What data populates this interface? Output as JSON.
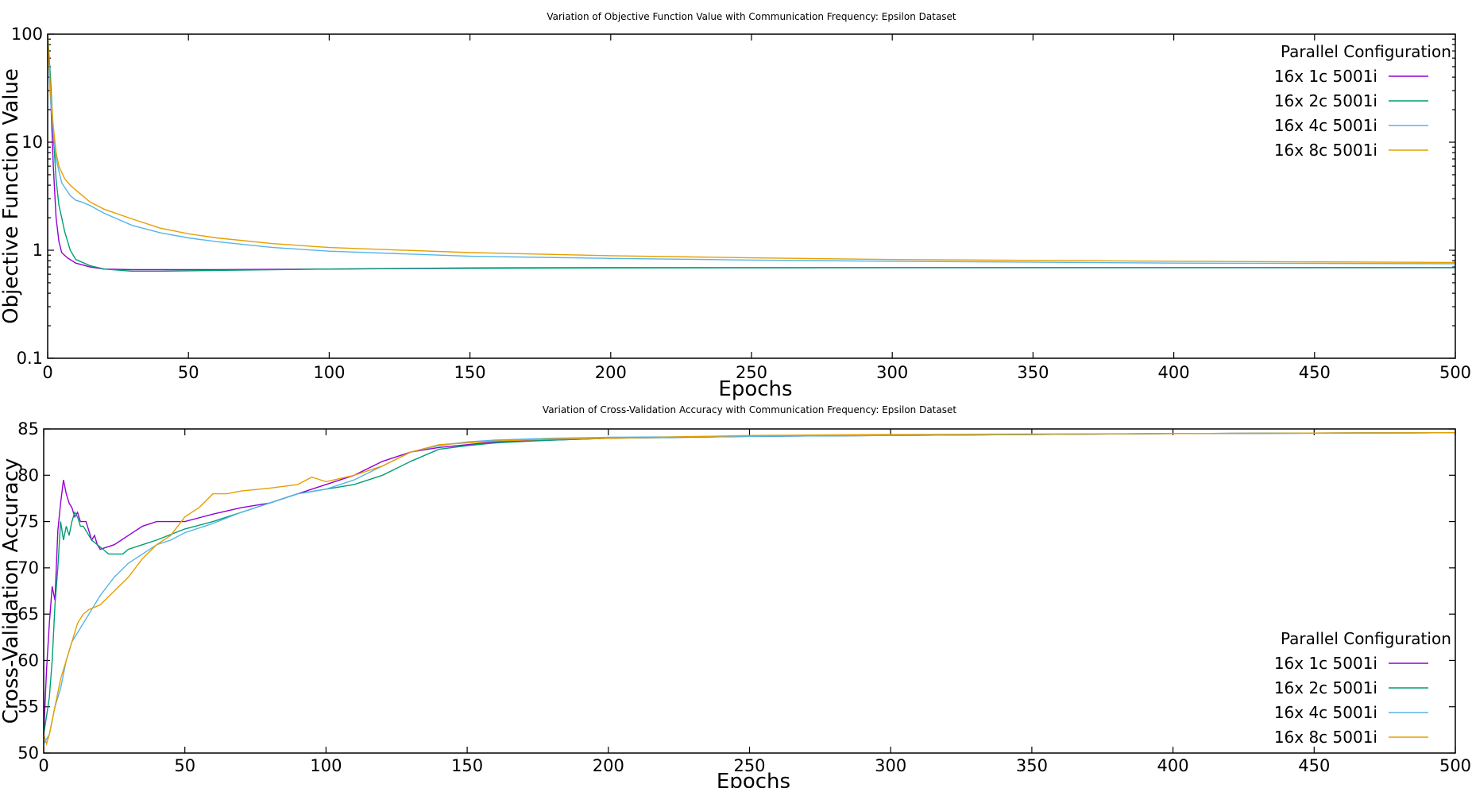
{
  "chart_data": [
    {
      "type": "line",
      "title": "Variation of Objective Function Value with Communication Frequency: Epsilon Dataset",
      "xlabel": "Epochs",
      "ylabel": "Objective Function Value",
      "xlim": [
        0,
        500
      ],
      "ylim": [
        0.1,
        100
      ],
      "yscale": "log",
      "xticks": [
        "0",
        "50",
        "100",
        "150",
        "200",
        "250",
        "300",
        "350",
        "400",
        "450",
        "500"
      ],
      "yticks": [
        "0.1",
        "1",
        "10",
        "100"
      ],
      "legend_title": "Parallel Configuration",
      "legend_position": "top-right",
      "grid": false,
      "series": [
        {
          "name": "16x 1c 5001i",
          "color": "#9400d3",
          "points": [
            [
              0,
              100
            ],
            [
              1,
              30
            ],
            [
              2,
              6
            ],
            [
              3,
              2
            ],
            [
              4,
              1.2
            ],
            [
              5,
              0.95
            ],
            [
              7,
              0.85
            ],
            [
              10,
              0.76
            ],
            [
              15,
              0.7
            ],
            [
              20,
              0.67
            ],
            [
              30,
              0.66
            ],
            [
              40,
              0.66
            ],
            [
              60,
              0.66
            ],
            [
              100,
              0.67
            ],
            [
              150,
              0.685
            ],
            [
              200,
              0.69
            ],
            [
              300,
              0.69
            ],
            [
              400,
              0.69
            ],
            [
              500,
              0.69
            ]
          ]
        },
        {
          "name": "16x 2c 5001i",
          "color": "#009e73",
          "points": [
            [
              0,
              100
            ],
            [
              1,
              40
            ],
            [
              2,
              12
            ],
            [
              3,
              4.5
            ],
            [
              4,
              2.6
            ],
            [
              5,
              2.0
            ],
            [
              6,
              1.5
            ],
            [
              8,
              1.0
            ],
            [
              10,
              0.82
            ],
            [
              15,
              0.72
            ],
            [
              20,
              0.67
            ],
            [
              30,
              0.64
            ],
            [
              40,
              0.64
            ],
            [
              60,
              0.65
            ],
            [
              100,
              0.67
            ],
            [
              150,
              0.68
            ],
            [
              200,
              0.685
            ],
            [
              300,
              0.69
            ],
            [
              400,
              0.69
            ],
            [
              500,
              0.69
            ]
          ]
        },
        {
          "name": "16x 4c 5001i",
          "color": "#56b4e9",
          "points": [
            [
              0,
              100
            ],
            [
              1,
              25
            ],
            [
              2,
              12
            ],
            [
              3,
              7
            ],
            [
              5,
              4.2
            ],
            [
              8,
              3.2
            ],
            [
              10,
              2.9
            ],
            [
              12,
              2.8
            ],
            [
              15,
              2.6
            ],
            [
              20,
              2.2
            ],
            [
              30,
              1.7
            ],
            [
              40,
              1.45
            ],
            [
              50,
              1.3
            ],
            [
              60,
              1.2
            ],
            [
              80,
              1.06
            ],
            [
              100,
              0.98
            ],
            [
              150,
              0.88
            ],
            [
              200,
              0.84
            ],
            [
              250,
              0.81
            ],
            [
              300,
              0.79
            ],
            [
              400,
              0.76
            ],
            [
              500,
              0.75
            ]
          ]
        },
        {
          "name": "16x 8c 5001i",
          "color": "#e69f00",
          "points": [
            [
              0,
              100
            ],
            [
              1,
              30
            ],
            [
              2,
              14
            ],
            [
              3,
              8
            ],
            [
              4,
              6
            ],
            [
              6,
              4.6
            ],
            [
              8,
              4.0
            ],
            [
              10,
              3.6
            ],
            [
              15,
              2.8
            ],
            [
              20,
              2.4
            ],
            [
              30,
              1.95
            ],
            [
              40,
              1.6
            ],
            [
              50,
              1.42
            ],
            [
              60,
              1.3
            ],
            [
              80,
              1.15
            ],
            [
              100,
              1.06
            ],
            [
              150,
              0.95
            ],
            [
              200,
              0.89
            ],
            [
              250,
              0.85
            ],
            [
              300,
              0.82
            ],
            [
              400,
              0.79
            ],
            [
              500,
              0.77
            ]
          ]
        }
      ]
    },
    {
      "type": "line",
      "title": "Variation of Cross-Validation Accuracy with Communication Frequency: Epsilon Dataset",
      "xlabel": "Epochs",
      "ylabel": "Cross-Validation Accuracy",
      "xlim": [
        0,
        500
      ],
      "ylim": [
        50,
        85
      ],
      "yscale": "linear",
      "xticks": [
        "0",
        "50",
        "100",
        "150",
        "200",
        "250",
        "300",
        "350",
        "400",
        "450",
        "500"
      ],
      "yticks": [
        "50",
        "55",
        "60",
        "65",
        "70",
        "75",
        "80",
        "85"
      ],
      "legend_title": "Parallel Configuration",
      "legend_position": "bottom-right",
      "grid": false,
      "series": [
        {
          "name": "16x 1c 5001i",
          "color": "#9400d3",
          "points": [
            [
              0,
              52
            ],
            [
              1,
              59
            ],
            [
              2,
              64
            ],
            [
              3,
              68
            ],
            [
              4,
              66.5
            ],
            [
              5,
              74
            ],
            [
              6,
              77
            ],
            [
              7,
              79.5
            ],
            [
              8,
              78
            ],
            [
              9,
              77
            ],
            [
              10,
              76.5
            ],
            [
              11,
              75.5
            ],
            [
              12,
              76
            ],
            [
              13,
              75
            ],
            [
              14,
              75
            ],
            [
              15,
              75
            ],
            [
              16,
              74
            ],
            [
              17,
              73
            ],
            [
              18,
              73.5
            ],
            [
              19,
              72.5
            ],
            [
              20,
              72
            ],
            [
              25,
              72.5
            ],
            [
              30,
              73.5
            ],
            [
              35,
              74.5
            ],
            [
              40,
              75
            ],
            [
              50,
              75
            ],
            [
              60,
              75.8
            ],
            [
              70,
              76.5
            ],
            [
              80,
              77
            ],
            [
              90,
              78
            ],
            [
              100,
              79
            ],
            [
              110,
              80
            ],
            [
              120,
              81.5
            ],
            [
              130,
              82.5
            ],
            [
              140,
              83
            ],
            [
              150,
              83.3
            ],
            [
              160,
              83.6
            ],
            [
              180,
              83.8
            ],
            [
              200,
              84
            ],
            [
              250,
              84.2
            ],
            [
              300,
              84.3
            ],
            [
              400,
              84.5
            ],
            [
              500,
              84.6
            ]
          ]
        },
        {
          "name": "16x 2c 5001i",
          "color": "#009e73",
          "points": [
            [
              0,
              52
            ],
            [
              1,
              54
            ],
            [
              2,
              56
            ],
            [
              3,
              60
            ],
            [
              4,
              66
            ],
            [
              5,
              70
            ],
            [
              6,
              75
            ],
            [
              7,
              73
            ],
            [
              8,
              74.5
            ],
            [
              9,
              73.5
            ],
            [
              10,
              75
            ],
            [
              11,
              76
            ],
            [
              12,
              75.5
            ],
            [
              13,
              74.5
            ],
            [
              14,
              74.5
            ],
            [
              15,
              74
            ],
            [
              17,
              73
            ],
            [
              19,
              72.5
            ],
            [
              21,
              72
            ],
            [
              23,
              71.5
            ],
            [
              25,
              71.5
            ],
            [
              28,
              71.5
            ],
            [
              30,
              72
            ],
            [
              35,
              72.5
            ],
            [
              40,
              73
            ],
            [
              50,
              74.2
            ],
            [
              60,
              75
            ],
            [
              70,
              76
            ],
            [
              80,
              77
            ],
            [
              90,
              78
            ],
            [
              100,
              78.5
            ],
            [
              110,
              79
            ],
            [
              120,
              80
            ],
            [
              130,
              81.5
            ],
            [
              140,
              82.8
            ],
            [
              150,
              83.2
            ],
            [
              160,
              83.5
            ],
            [
              180,
              83.8
            ],
            [
              200,
              84
            ],
            [
              250,
              84.2
            ],
            [
              300,
              84.3
            ],
            [
              400,
              84.5
            ],
            [
              500,
              84.6
            ]
          ]
        },
        {
          "name": "16x 4c 5001i",
          "color": "#56b4e9",
          "points": [
            [
              0,
              51
            ],
            [
              2,
              52
            ],
            [
              4,
              55
            ],
            [
              6,
              57
            ],
            [
              8,
              60
            ],
            [
              10,
              62
            ],
            [
              12,
              63
            ],
            [
              14,
              64
            ],
            [
              16,
              65
            ],
            [
              20,
              67
            ],
            [
              25,
              69
            ],
            [
              30,
              70.5
            ],
            [
              35,
              71.5
            ],
            [
              40,
              72.5
            ],
            [
              45,
              73
            ],
            [
              50,
              73.8
            ],
            [
              60,
              74.8
            ],
            [
              70,
              76
            ],
            [
              80,
              77
            ],
            [
              90,
              78
            ],
            [
              100,
              78.5
            ],
            [
              110,
              79.5
            ],
            [
              120,
              81
            ],
            [
              130,
              82.5
            ],
            [
              140,
              83.2
            ],
            [
              150,
              83.6
            ],
            [
              160,
              83.8
            ],
            [
              180,
              84
            ],
            [
              200,
              84.1
            ],
            [
              250,
              84.2
            ],
            [
              300,
              84.3
            ],
            [
              400,
              84.5
            ],
            [
              500,
              84.6
            ]
          ]
        },
        {
          "name": "16x 8c 5001i",
          "color": "#e69f00",
          "points": [
            [
              0,
              52
            ],
            [
              1,
              51
            ],
            [
              2,
              52
            ],
            [
              4,
              55
            ],
            [
              6,
              58
            ],
            [
              8,
              60
            ],
            [
              10,
              62
            ],
            [
              12,
              64
            ],
            [
              14,
              65
            ],
            [
              16,
              65.5
            ],
            [
              20,
              66
            ],
            [
              25,
              67.5
            ],
            [
              30,
              69
            ],
            [
              35,
              71
            ],
            [
              40,
              72.5
            ],
            [
              45,
              73.5
            ],
            [
              50,
              75.5
            ],
            [
              55,
              76.5
            ],
            [
              60,
              78
            ],
            [
              65,
              78
            ],
            [
              70,
              78.3
            ],
            [
              80,
              78.6
            ],
            [
              90,
              79
            ],
            [
              95,
              79.8
            ],
            [
              100,
              79.3
            ],
            [
              110,
              80
            ],
            [
              120,
              81
            ],
            [
              130,
              82.5
            ],
            [
              140,
              83.3
            ],
            [
              150,
              83.5
            ],
            [
              160,
              83.7
            ],
            [
              180,
              83.9
            ],
            [
              200,
              84
            ],
            [
              250,
              84.3
            ],
            [
              300,
              84.4
            ],
            [
              400,
              84.5
            ],
            [
              500,
              84.6
            ]
          ]
        }
      ]
    }
  ]
}
